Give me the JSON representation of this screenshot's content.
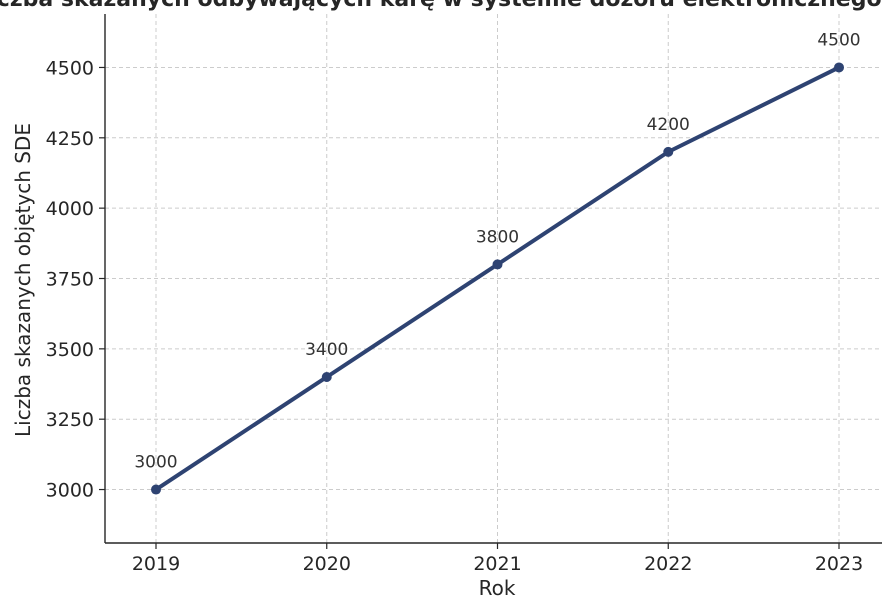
{
  "chart_data": {
    "type": "line",
    "title": "Liczba skazanych odbywających karę w systemie dozoru elektronicznego w l",
    "xlabel": "Rok",
    "ylabel": "Liczba skazanych objętych SDE",
    "x": [
      "2019",
      "2020",
      "2021",
      "2022",
      "2023"
    ],
    "series": [
      {
        "values": [
          3000,
          3400,
          3800,
          4200,
          4500
        ],
        "labels": [
          "3000",
          "3400",
          "3800",
          "4200",
          "4500"
        ]
      }
    ],
    "ylim": [
      2810,
      4690
    ],
    "yticks": [
      3000,
      3250,
      3500,
      3750,
      4000,
      4250,
      4500
    ],
    "ytick_labels": [
      "3000",
      "3250",
      "3500",
      "3750",
      "4000",
      "4250",
      "4500"
    ],
    "grid": true,
    "line_color": "#2e4372"
  }
}
